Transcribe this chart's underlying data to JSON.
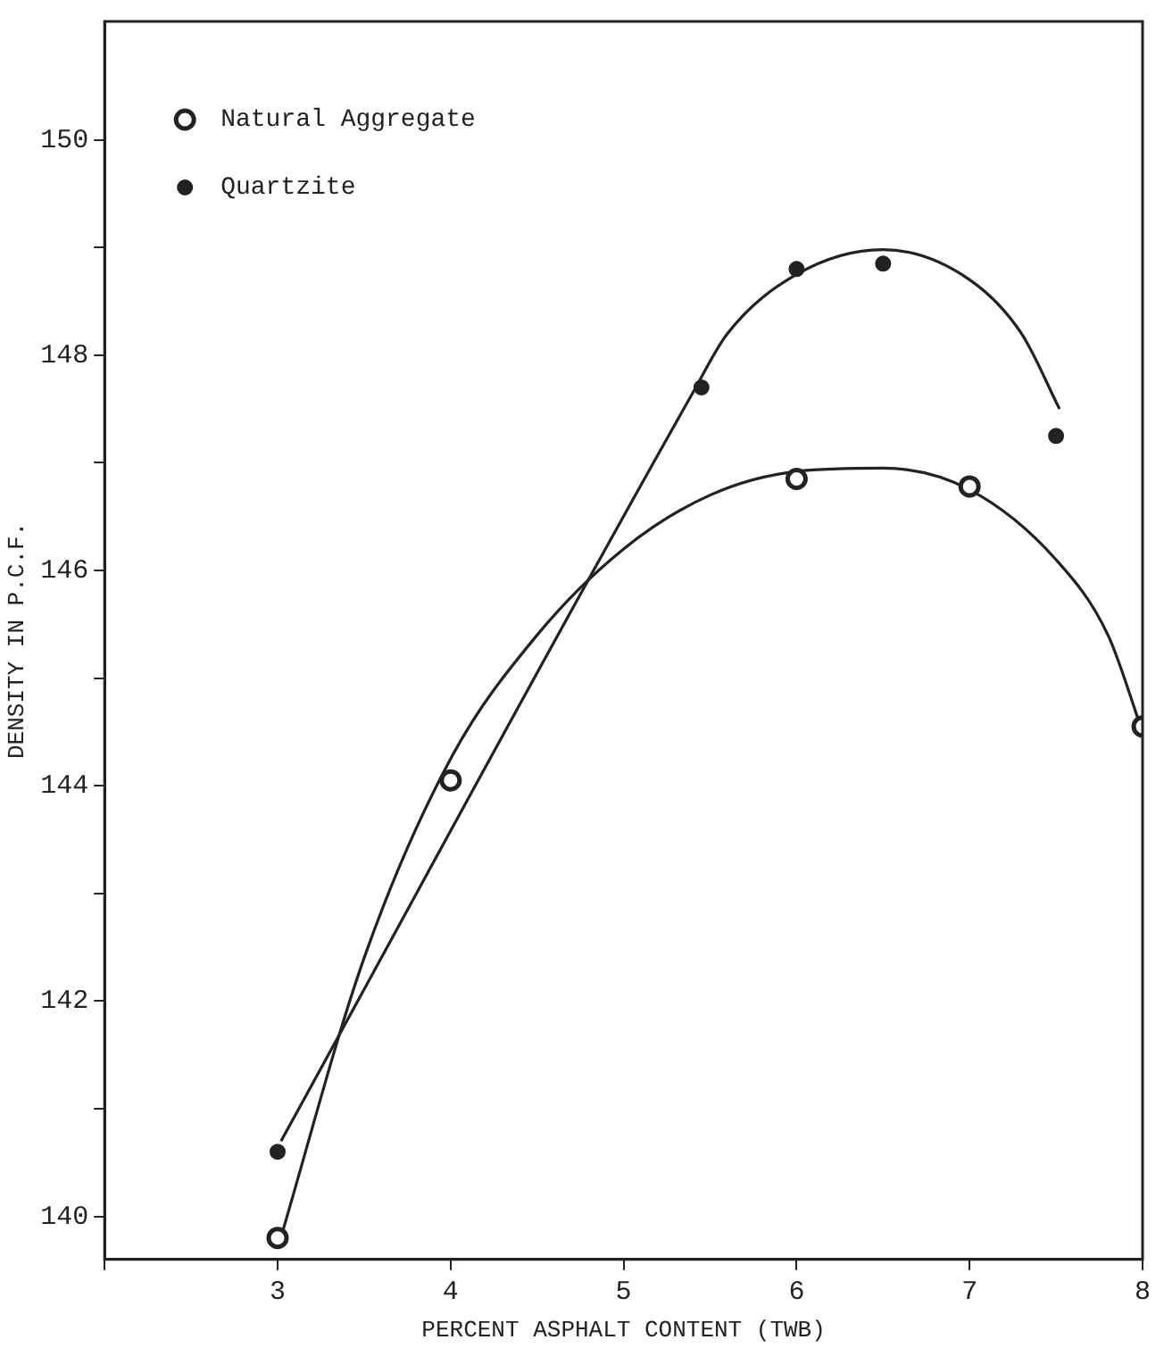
{
  "chart_data": {
    "type": "scatter",
    "xlabel": "PERCENT ASPHALT CONTENT (TWB)",
    "ylabel": "DENSITY IN P.C.F.",
    "xlim": [
      2,
      8
    ],
    "xticks": [
      {
        "value": 2,
        "label": null
      },
      3,
      4,
      5,
      6,
      7,
      8
    ],
    "ylim": [
      139.6,
      151.1
    ],
    "yticks": [
      140,
      {
        "value": 141,
        "label": null
      },
      142,
      {
        "value": 143,
        "label": null
      },
      144,
      {
        "value": 145,
        "label": null
      },
      146,
      {
        "value": 147,
        "label": null
      },
      148,
      {
        "value": 149,
        "label": null
      },
      150
    ],
    "grid": false,
    "legend": "top left",
    "marker": "circle",
    "series": [
      {
        "name": "Natural Aggregate",
        "type": "scatter",
        "color": "#222222",
        "x": [
          3,
          4,
          6,
          7,
          8
        ],
        "values": [
          139.8,
          144.05,
          146.85,
          146.78,
          144.55
        ]
      },
      {
        "name": "Quartzite",
        "type": "scatter",
        "color": "#222222",
        "x": [
          3,
          5.45,
          6,
          6.5,
          7.5
        ],
        "values": [
          140.6,
          147.7,
          148.8,
          148.85,
          147.25
        ]
      },
      {
        "type": "line",
        "color": "#222222",
        "marker": "none",
        "line_style": "solid",
        "x": [
          3,
          3.5,
          4,
          4.5,
          5,
          5.5,
          6,
          6.5,
          7,
          7.5,
          7.8,
          8
        ],
        "values": [
          139.7,
          142.4,
          144.25,
          145.4,
          146.2,
          146.7,
          146.92,
          146.95,
          146.75,
          146.1,
          145.4,
          144.5
        ]
      },
      {
        "type": "line",
        "color": "#222222",
        "marker": "none",
        "line_style": "solid",
        "x": [
          3.02,
          5.4,
          5.6,
          6,
          6.5,
          7,
          7.3,
          7.52
        ],
        "values": [
          140.7,
          147.65,
          148.2,
          148.75,
          148.98,
          148.7,
          148.2,
          147.5
        ]
      }
    ]
  }
}
